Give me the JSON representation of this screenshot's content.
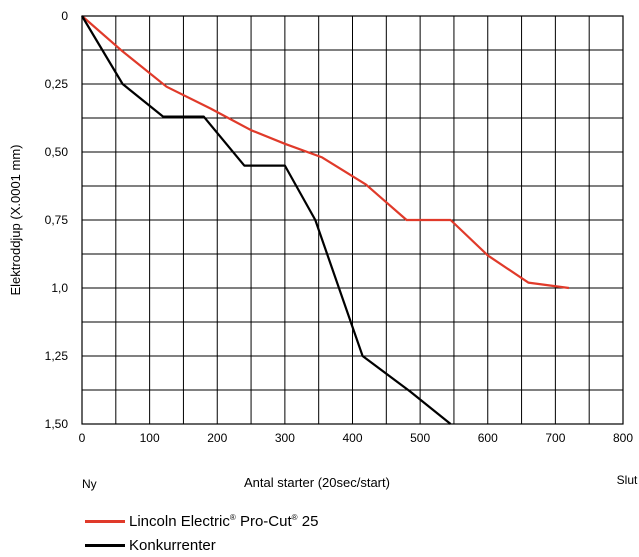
{
  "chart_data": {
    "type": "line",
    "x_ticks": [
      "0",
      "100",
      "200",
      "300",
      "400",
      "500",
      "600",
      "700",
      "800"
    ],
    "y_ticks": [
      "0",
      "0,25",
      "0,50",
      "0,75",
      "1,0",
      "1,25",
      "1,50"
    ],
    "xlabel": "Antal starter (20sec/start)",
    "ylabel": "Elektroddjup (X.0001 mm)",
    "x_start_label": "Ny",
    "x_end_label": "Slut",
    "xlim": [
      0,
      800
    ],
    "ylim": [
      0,
      1.5
    ],
    "y_inverted": true,
    "grid": true,
    "series": [
      {
        "name": "Lincoln Electric® Pro-Cut® 25",
        "name_parts": [
          "Lincoln Electric",
          "®",
          " Pro-Cut",
          "®",
          " 25"
        ],
        "color": "#e03a2a",
        "x": [
          0,
          60,
          125,
          190,
          250,
          300,
          355,
          420,
          480,
          545,
          600,
          660,
          720
        ],
        "y": [
          0,
          0.13,
          0.26,
          0.34,
          0.42,
          0.47,
          0.52,
          0.62,
          0.75,
          0.75,
          0.88,
          0.98,
          1.0
        ]
      },
      {
        "name": "Konkurrenter",
        "color": "#000000",
        "x": [
          0,
          60,
          120,
          180,
          240,
          300,
          345,
          415,
          485,
          545
        ],
        "y": [
          0,
          0.25,
          0.37,
          0.37,
          0.55,
          0.55,
          0.75,
          1.25,
          1.38,
          1.5
        ]
      }
    ]
  }
}
